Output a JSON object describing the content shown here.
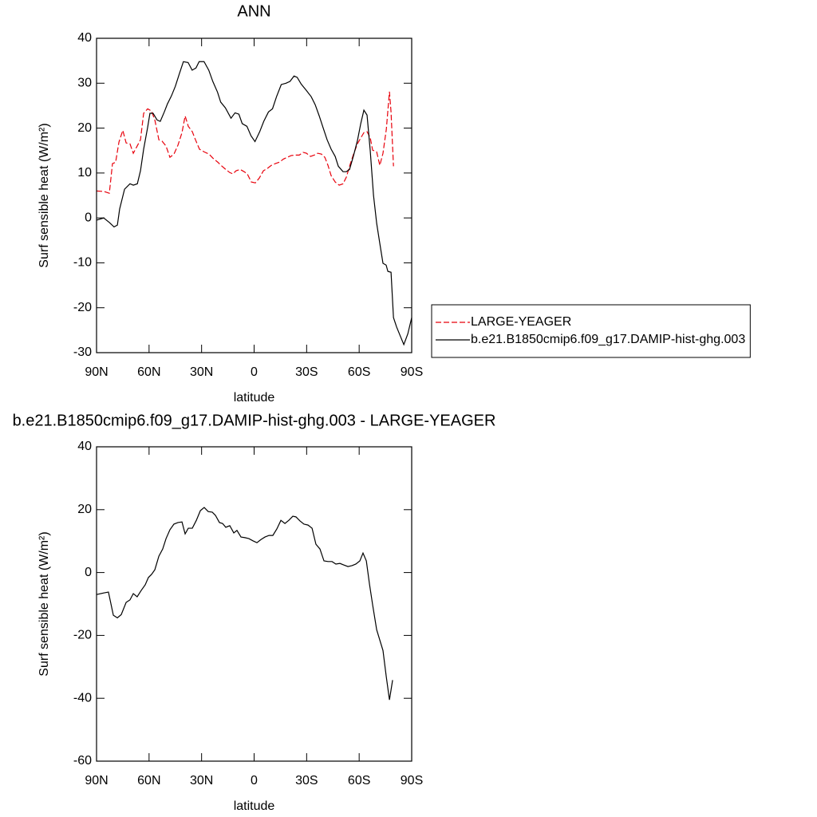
{
  "chart_data": [
    {
      "type": "line",
      "title": "ANN",
      "x_label": "latitude",
      "y_label": "Surf sensible heat (W/m²)",
      "xlim": [
        90,
        -90
      ],
      "xticks": [
        {
          "value": 90,
          "label": "90N"
        },
        {
          "value": 60,
          "label": "60N"
        },
        {
          "value": 30,
          "label": "30N"
        },
        0,
        {
          "value": -30,
          "label": "30S"
        },
        {
          "value": -60,
          "label": "60S"
        },
        {
          "value": -90,
          "label": "90S"
        }
      ],
      "ylim": [
        -30,
        40
      ],
      "yticks": [
        -30,
        -20,
        -10,
        0,
        10,
        20,
        30,
        40
      ],
      "legend": "right",
      "series": [
        {
          "name": "LARGE-YEAGER",
          "color": "#e8000b",
          "dash": true,
          "x": [
            90,
            85.9,
            82.7,
            80.9,
            79.1,
            77.2,
            75.0,
            73.1,
            70.9,
            69.0,
            66.8,
            64.9,
            63.1,
            60.8,
            58.6,
            56.7,
            54.4,
            52.6,
            50.3,
            48.1,
            45.8,
            43.5,
            41.2,
            39.4,
            37.6,
            35.3,
            33.5,
            31.2,
            28.5,
            25.7,
            23.5,
            20.7,
            18.9,
            16.2,
            13.9,
            12.1,
            10.3,
            8.0,
            5.7,
            3.9,
            1.6,
            -0.7,
            -3.0,
            -5.3,
            -7.5,
            -9.8,
            -12.1,
            -14.4,
            -16.7,
            -18.9,
            -21.2,
            -23.5,
            -25.8,
            -28.0,
            -29.9,
            -32.2,
            -34.4,
            -36.3,
            -38.5,
            -40.4,
            -42.2,
            -44.0,
            -46.3,
            -48.6,
            -50.8,
            -52.7,
            -54.5,
            -56.8,
            -59.0,
            -60.9,
            -62.7,
            -64.5,
            -66.3,
            -67.7,
            -70.0,
            -71.8,
            -73.6,
            -75.5,
            -77.3,
            -78.2,
            -79.6
          ],
          "values": [
            6.0,
            5.9,
            5.5,
            12.1,
            12.4,
            16.9,
            19.5,
            16.7,
            16.5,
            14.4,
            16.0,
            17.4,
            23.3,
            24.3,
            23.8,
            21.8,
            17.4,
            17.1,
            16.0,
            13.5,
            14.2,
            16.2,
            19.0,
            22.7,
            20.4,
            19.2,
            17.4,
            15.3,
            14.7,
            14.2,
            13.3,
            12.4,
            11.7,
            10.8,
            10.1,
            9.8,
            10.5,
            10.8,
            10.3,
            9.8,
            8.0,
            7.8,
            8.9,
            10.5,
            11.0,
            11.7,
            12.1,
            12.4,
            13.1,
            13.5,
            13.9,
            14.0,
            14.0,
            14.6,
            14.4,
            13.7,
            14.0,
            14.4,
            14.2,
            13.5,
            11.7,
            9.4,
            8.0,
            7.3,
            7.6,
            9.1,
            11.5,
            14.2,
            16.5,
            17.8,
            19.0,
            19.2,
            17.9,
            15.1,
            14.7,
            11.7,
            14.4,
            19.7,
            28.1,
            23.6,
            11.5
          ]
        },
        {
          "name": "b.e21.B1850cmip6.f09_g17.DAMIP-hist-ghg.003",
          "color": "#000000",
          "dash": false,
          "x": [
            90,
            85.9,
            82.7,
            80.0,
            78.1,
            76.8,
            74.0,
            70.9,
            69.0,
            66.7,
            64.9,
            63.1,
            60.8,
            59.5,
            57.7,
            55.4,
            53.6,
            51.3,
            49.5,
            47.2,
            45.0,
            42.7,
            40.4,
            37.7,
            35.4,
            33.2,
            31.4,
            28.6,
            25.9,
            23.6,
            20.9,
            19.1,
            16.4,
            13.2,
            10.9,
            8.7,
            6.8,
            4.1,
            1.8,
            -0.5,
            -3.2,
            -5.5,
            -8.2,
            -10.5,
            -12.8,
            -15.5,
            -18.2,
            -20.5,
            -22.8,
            -24.6,
            -26.9,
            -29.4,
            -32.6,
            -34.9,
            -37.2,
            -39.4,
            -41.7,
            -44.0,
            -46.3,
            -48.1,
            -50.8,
            -52.7,
            -54.5,
            -56.8,
            -59.0,
            -60.9,
            -62.7,
            -64.5,
            -66.3,
            -68.2,
            -70.0,
            -71.8,
            -73.6,
            -75.4,
            -76.4,
            -78.2,
            -79.6,
            -81.4,
            -83.7,
            -85.5,
            -87.8,
            -90
          ],
          "values": [
            -0.5,
            0,
            -1,
            -2,
            -1.6,
            2,
            6.4,
            7.6,
            7.3,
            7.6,
            10.5,
            15.3,
            20.2,
            23.3,
            23.3,
            21.8,
            21.5,
            23.6,
            25.4,
            27.2,
            29.3,
            32.1,
            34.8,
            34.6,
            32.9,
            33.4,
            34.8,
            34.8,
            32.9,
            30.4,
            28.0,
            25.8,
            24.5,
            22.2,
            23.4,
            23.1,
            21.0,
            20.4,
            18.3,
            17.0,
            19.2,
            21.5,
            23.6,
            24.3,
            27.0,
            29.7,
            30.0,
            30.4,
            31.6,
            31.3,
            29.8,
            28.6,
            27.0,
            25.2,
            22.7,
            20.1,
            17.4,
            15.3,
            13.7,
            11.5,
            10.3,
            10.3,
            10.8,
            13.9,
            17.2,
            21.0,
            24.0,
            22.9,
            15.1,
            5.0,
            -1.2,
            -5.7,
            -10.1,
            -10.5,
            -11.9,
            -12.1,
            -22.2,
            -24.3,
            -26.5,
            -28.2,
            -25.8,
            -22.2
          ]
        }
      ]
    },
    {
      "type": "line",
      "title": "b.e21.B1850cmip6.f09_g17.DAMIP-hist-ghg.003 - LARGE-YEAGER",
      "x_label": "latitude",
      "y_label": "Surf sensible heat (W/m²)",
      "xlim": [
        90,
        -90
      ],
      "xticks": [
        {
          "value": 90,
          "label": "90N"
        },
        {
          "value": 60,
          "label": "60N"
        },
        {
          "value": 30,
          "label": "30N"
        },
        0,
        {
          "value": -30,
          "label": "30S"
        },
        {
          "value": -60,
          "label": "60S"
        },
        {
          "value": -90,
          "label": "90S"
        }
      ],
      "ylim": [
        -60,
        40
      ],
      "yticks": [
        -60,
        -40,
        -20,
        0,
        20,
        40
      ],
      "series": [
        {
          "color": "#000000",
          "dash": false,
          "x": [
            90,
            85.9,
            83.2,
            80.4,
            78.1,
            75.9,
            73.1,
            70.9,
            69.0,
            66.8,
            64.5,
            62.2,
            60.4,
            58.6,
            56.7,
            54.4,
            52.2,
            50.3,
            48.1,
            45.8,
            43.5,
            41.2,
            39.4,
            37.6,
            35.3,
            33.0,
            30.7,
            28.5,
            26.2,
            23.9,
            22.1,
            19.8,
            18.0,
            16.2,
            13.9,
            11.6,
            9.8,
            7.5,
            5.2,
            3.0,
            0.7,
            -1.6,
            -3.9,
            -6.2,
            -8.5,
            -10.7,
            -13.0,
            -15.3,
            -17.6,
            -19.8,
            -22.1,
            -23.9,
            -26.2,
            -28.5,
            -30.8,
            -33.1,
            -35.3,
            -37.6,
            -39.9,
            -42.2,
            -44.5,
            -46.7,
            -49.0,
            -51.3,
            -53.6,
            -55.9,
            -58.1,
            -60.4,
            -62.2,
            -64.1,
            -65.9,
            -67.7,
            -70.0,
            -71.8,
            -73.6,
            -75.5,
            -77.3,
            -79.1
          ],
          "values": [
            -7.0,
            -6.5,
            -6.2,
            -13.6,
            -14.4,
            -13.4,
            -9.5,
            -8.7,
            -6.7,
            -7.7,
            -5.7,
            -3.9,
            -1.6,
            -0.6,
            0.9,
            5.2,
            7.5,
            10.8,
            13.6,
            15.4,
            15.9,
            16.1,
            12.3,
            14.1,
            14.1,
            16.6,
            19.7,
            20.7,
            19.4,
            19.2,
            18.2,
            15.9,
            15.6,
            14.4,
            14.9,
            12.6,
            13.4,
            11.3,
            11.1,
            10.8,
            10.1,
            9.5,
            10.5,
            11.3,
            11.8,
            11.8,
            13.9,
            16.6,
            15.6,
            16.6,
            17.9,
            17.7,
            16.4,
            15.4,
            15.1,
            14.1,
            9.0,
            7.5,
            3.7,
            3.5,
            3.5,
            2.7,
            2.9,
            2.4,
            1.9,
            2.2,
            2.7,
            3.7,
            6.2,
            3.7,
            -3.7,
            -10.3,
            -18.2,
            -21.5,
            -24.8,
            -33.2,
            -40.5,
            -34.2
          ]
        }
      ]
    }
  ]
}
